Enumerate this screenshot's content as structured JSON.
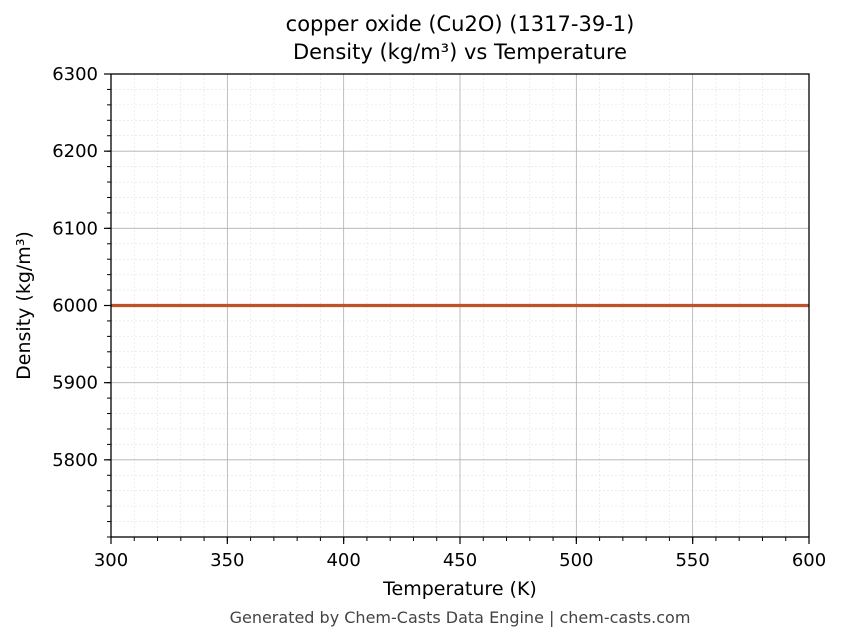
{
  "chart_data": {
    "type": "line",
    "title": "copper oxide (Cu2O) (1317-39-1)",
    "subtitle": "Density (kg/m³) vs Temperature",
    "xlabel": "Temperature (K)",
    "ylabel": "Density (kg/m³)",
    "xlim": [
      300,
      600
    ],
    "ylim": [
      5700,
      6300
    ],
    "x_ticks": [
      300,
      350,
      400,
      450,
      500,
      550,
      600
    ],
    "y_ticks": [
      5800,
      5900,
      6000,
      6100,
      6200,
      6300
    ],
    "grid": true,
    "series": [
      {
        "color": "#c0522b",
        "x": [
          300,
          600
        ],
        "y": [
          6000,
          6000
        ]
      }
    ]
  },
  "footer": "Generated by Chem-Casts Data Engine | chem-casts.com"
}
